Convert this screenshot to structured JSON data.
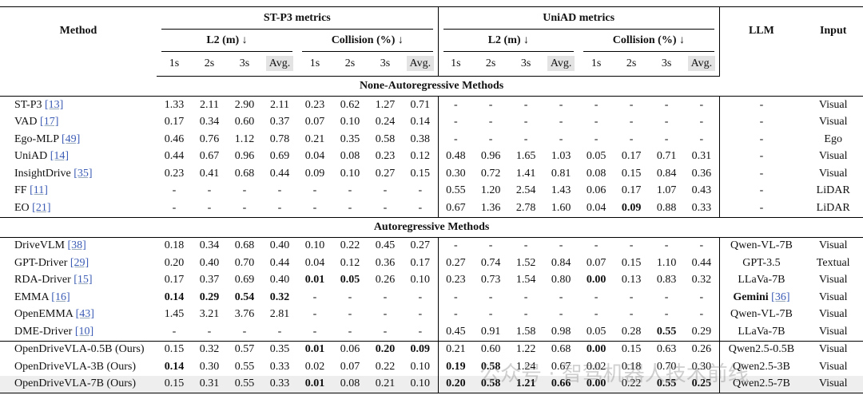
{
  "header": {
    "method": "Method",
    "llm": "LLM",
    "input": "Input",
    "groups": [
      {
        "title": "ST-P3 metrics",
        "subgroups": [
          {
            "title": "L2 (m) ↓",
            "cols": [
              "1s",
              "2s",
              "3s",
              "Avg."
            ]
          },
          {
            "title": "Collision (%) ↓",
            "cols": [
              "1s",
              "2s",
              "3s",
              "Avg."
            ]
          }
        ]
      },
      {
        "title": "UniAD metrics",
        "subgroups": [
          {
            "title": "L2 (m) ↓",
            "cols": [
              "1s",
              "2s",
              "3s",
              "Avg."
            ]
          },
          {
            "title": "Collision (%) ↓",
            "cols": [
              "1s",
              "2s",
              "3s",
              "Avg."
            ]
          }
        ]
      }
    ]
  },
  "sections": [
    {
      "title": "None-Autoregressive Methods",
      "rows": [
        {
          "method": "ST-P3",
          "ref": "[13]",
          "values": [
            "1.33",
            "2.11",
            "2.90",
            "2.11",
            "0.23",
            "0.62",
            "1.27",
            "0.71",
            "-",
            "-",
            "-",
            "-",
            "-",
            "-",
            "-",
            "-"
          ],
          "llm": "-",
          "input": "Visual"
        },
        {
          "method": "VAD",
          "ref": "[17]",
          "values": [
            "0.17",
            "0.34",
            "0.60",
            "0.37",
            "0.07",
            "0.10",
            "0.24",
            "0.14",
            "-",
            "-",
            "-",
            "-",
            "-",
            "-",
            "-",
            "-"
          ],
          "llm": "-",
          "input": "Visual"
        },
        {
          "method": "Ego-MLP",
          "ref": "[49]",
          "values": [
            "0.46",
            "0.76",
            "1.12",
            "0.78",
            "0.21",
            "0.35",
            "0.58",
            "0.38",
            "-",
            "-",
            "-",
            "-",
            "-",
            "-",
            "-",
            "-"
          ],
          "llm": "-",
          "input": "Ego"
        },
        {
          "method": "UniAD",
          "ref": "[14]",
          "values": [
            "0.44",
            "0.67",
            "0.96",
            "0.69",
            "0.04",
            "0.08",
            "0.23",
            "0.12",
            "0.48",
            "0.96",
            "1.65",
            "1.03",
            "0.05",
            "0.17",
            "0.71",
            "0.31"
          ],
          "llm": "-",
          "input": "Visual"
        },
        {
          "method": "InsightDrive",
          "ref": "[35]",
          "values": [
            "0.23",
            "0.41",
            "0.68",
            "0.44",
            "0.09",
            "0.10",
            "0.27",
            "0.15",
            "0.30",
            "0.72",
            "1.41",
            "0.81",
            "0.08",
            "0.15",
            "0.84",
            "0.36"
          ],
          "llm": "-",
          "input": "Visual"
        },
        {
          "method": "FF",
          "ref": "[11]",
          "values": [
            "-",
            "-",
            "-",
            "-",
            "-",
            "-",
            "-",
            "-",
            "0.55",
            "1.20",
            "2.54",
            "1.43",
            "0.06",
            "0.17",
            "1.07",
            "0.43"
          ],
          "llm": "-",
          "input": "LiDAR"
        },
        {
          "method": "EO",
          "ref": "[21]",
          "values": [
            "-",
            "-",
            "-",
            "-",
            "-",
            "-",
            "-",
            "-",
            "0.67",
            "1.36",
            "2.78",
            "1.60",
            "0.04",
            "0.09",
            "0.88",
            "0.33"
          ],
          "bold": [
            13
          ],
          "llm": "-",
          "input": "LiDAR"
        }
      ]
    },
    {
      "title": "Autoregressive Methods",
      "rows": [
        {
          "method": "DriveVLM",
          "ref": "[38]",
          "values": [
            "0.18",
            "0.34",
            "0.68",
            "0.40",
            "0.10",
            "0.22",
            "0.45",
            "0.27",
            "-",
            "-",
            "-",
            "-",
            "-",
            "-",
            "-",
            "-"
          ],
          "llm": "Qwen-VL-7B",
          "input": "Visual"
        },
        {
          "method": "GPT-Driver",
          "ref": "[29]",
          "values": [
            "0.20",
            "0.40",
            "0.70",
            "0.44",
            "0.04",
            "0.12",
            "0.36",
            "0.17",
            "0.27",
            "0.74",
            "1.52",
            "0.84",
            "0.07",
            "0.15",
            "1.10",
            "0.44"
          ],
          "llm": "GPT-3.5",
          "input": "Textual"
        },
        {
          "method": "RDA-Driver",
          "ref": "[15]",
          "values": [
            "0.17",
            "0.37",
            "0.69",
            "0.40",
            "0.01",
            "0.05",
            "0.26",
            "0.10",
            "0.23",
            "0.73",
            "1.54",
            "0.80",
            "0.00",
            "0.13",
            "0.83",
            "0.32"
          ],
          "bold": [
            4,
            5,
            12
          ],
          "llm": "LLaVa-7B",
          "input": "Visual"
        },
        {
          "method": "EMMA",
          "ref": "[16]",
          "values": [
            "0.14",
            "0.29",
            "0.54",
            "0.32",
            "-",
            "-",
            "-",
            "-",
            "-",
            "-",
            "-",
            "-",
            "-",
            "-",
            "-",
            "-"
          ],
          "bold": [
            0,
            1,
            2,
            3
          ],
          "llm": "Gemini",
          "llm_ref": "[36]",
          "llm_bold": true,
          "input": "Visual"
        },
        {
          "method": "OpenEMMA",
          "ref": "[43]",
          "values": [
            "1.45",
            "3.21",
            "3.76",
            "2.81",
            "-",
            "-",
            "-",
            "-",
            "-",
            "-",
            "-",
            "-",
            "-",
            "-",
            "-",
            "-"
          ],
          "llm": "Qwen-VL-7B",
          "input": "Visual"
        },
        {
          "method": "DME-Driver",
          "ref": "[10]",
          "values": [
            "-",
            "-",
            "-",
            "-",
            "-",
            "-",
            "-",
            "-",
            "0.45",
            "0.91",
            "1.58",
            "0.98",
            "0.05",
            "0.28",
            "0.55",
            "0.29"
          ],
          "bold": [
            14
          ],
          "llm": "LLaVa-7B",
          "input": "Visual"
        }
      ]
    },
    {
      "rows": [
        {
          "method": "OpenDriveVLA-0.5B (Ours)",
          "values": [
            "0.15",
            "0.32",
            "0.57",
            "0.35",
            "0.01",
            "0.06",
            "0.20",
            "0.09",
            "0.21",
            "0.60",
            "1.22",
            "0.68",
            "0.00",
            "0.15",
            "0.63",
            "0.26"
          ],
          "bold": [
            4,
            6,
            7,
            12
          ],
          "llm": "Qwen2.5-0.5B",
          "input": "Visual"
        },
        {
          "method": "OpenDriveVLA-3B (Ours)",
          "values": [
            "0.14",
            "0.30",
            "0.55",
            "0.33",
            "0.02",
            "0.07",
            "0.22",
            "0.10",
            "0.19",
            "0.58",
            "1.24",
            "0.67",
            "0.02",
            "0.18",
            "0.70",
            "0.30"
          ],
          "bold": [
            0,
            8,
            9
          ],
          "llm": "Qwen2.5-3B",
          "input": "Visual"
        },
        {
          "method": "OpenDriveVLA-7B (Ours)",
          "values": [
            "0.15",
            "0.31",
            "0.55",
            "0.33",
            "0.01",
            "0.08",
            "0.21",
            "0.10",
            "0.20",
            "0.58",
            "1.21",
            "0.66",
            "0.00",
            "0.22",
            "0.55",
            "0.25"
          ],
          "bold": [
            4,
            8,
            9,
            10,
            11,
            12,
            14,
            15
          ],
          "llm": "Qwen2.5-7B",
          "input": "Visual",
          "highlight": true
        }
      ]
    }
  ],
  "watermark": "公众号 · 智驾机器人技术前线"
}
